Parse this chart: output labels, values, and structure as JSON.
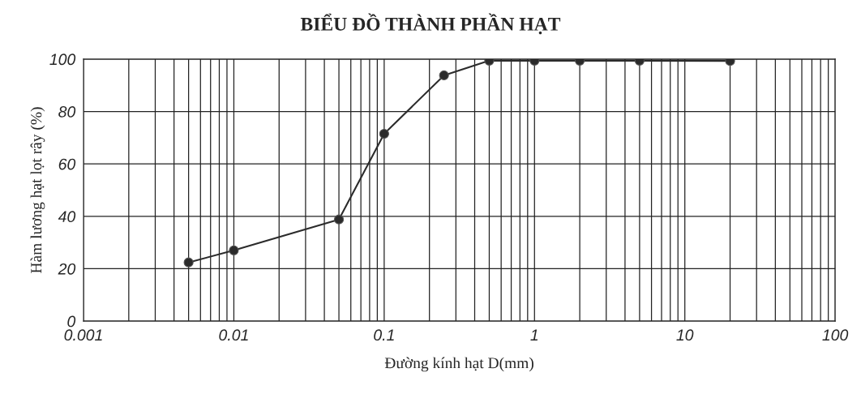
{
  "chart_data": {
    "type": "line",
    "title": "BIỂU ĐỒ THÀNH PHẦN HẠT",
    "xlabel": "Đường kính hạt D(mm)",
    "ylabel": "Hàm lương hạt lọt rây (%)",
    "x": [
      0.005,
      0.01,
      0.05,
      0.1,
      0.25,
      0.5,
      1,
      2,
      5,
      20
    ],
    "series": [
      {
        "color": "#2b2b2b",
        "values": [
          22.4,
          27,
          38.8,
          71.5,
          93.8,
          99.4,
          99.4,
          99.4,
          99.4,
          99.3
        ]
      }
    ],
    "log": "x",
    "xlim": [
      0.001,
      100
    ],
    "xticks": [
      0.001,
      0.01,
      0.1,
      1,
      10,
      100
    ],
    "ylim": [
      0,
      100
    ],
    "yticks": [
      0,
      20,
      40,
      60,
      80,
      100
    ],
    "grid": true,
    "marker": "circle",
    "line_style": "solid"
  }
}
